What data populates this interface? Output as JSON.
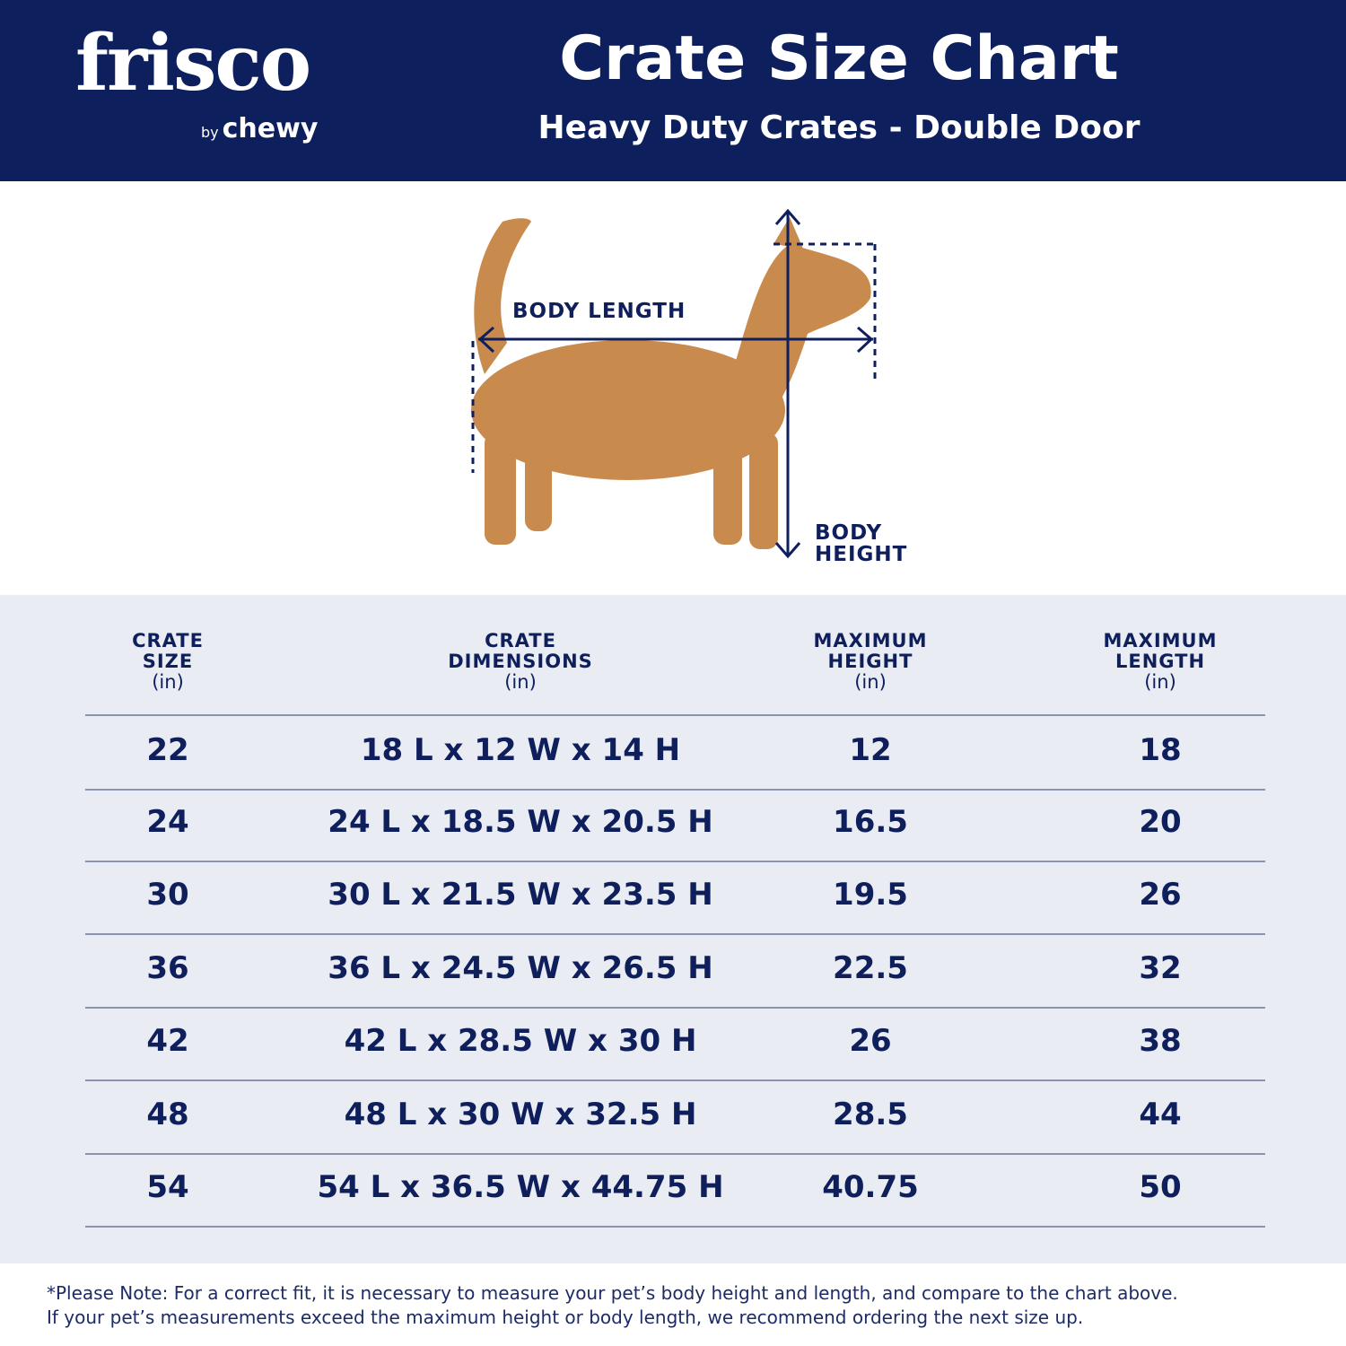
{
  "brand": {
    "logo_text": "frisco",
    "logo_by": "by",
    "logo_sub": "chewy"
  },
  "header": {
    "title": "Crate Size Chart",
    "subtitle": "Heavy Duty Crates - Double Door"
  },
  "diagram": {
    "body_length_label": "BODY LENGTH",
    "body_height_label_1": "BODY",
    "body_height_label_2": "HEIGHT"
  },
  "colors": {
    "navy": "#0e1f5e",
    "table_bg": "#e9ecf2",
    "dog": "#c98a4e"
  },
  "table": {
    "headers": [
      {
        "line1": "CRATE",
        "line2": "SIZE",
        "unit": "(in)"
      },
      {
        "line1": "CRATE",
        "line2": "DIMENSIONS",
        "unit": "(in)"
      },
      {
        "line1": "MAXIMUM",
        "line2": "HEIGHT",
        "unit": "(in)"
      },
      {
        "line1": "MAXIMUM",
        "line2": "LENGTH",
        "unit": "(in)"
      }
    ],
    "rows": [
      [
        "22",
        "18 L x 12 W x 14 H",
        "12",
        "18"
      ],
      [
        "24",
        "24 L x 18.5 W x 20.5 H",
        "16.5",
        "20"
      ],
      [
        "30",
        "30 L x 21.5 W x 23.5 H",
        "19.5",
        "26"
      ],
      [
        "36",
        "36 L x 24.5 W x 26.5 H",
        "22.5",
        "32"
      ],
      [
        "42",
        "42 L x 28.5 W x 30 H",
        "26",
        "38"
      ],
      [
        "48",
        "48 L x 30 W x 32.5 H",
        "28.5",
        "44"
      ],
      [
        "54",
        "54 L x 36.5 W x 44.75 H",
        "40.75",
        "50"
      ]
    ]
  },
  "footer": {
    "line1": "*Please Note: For a correct fit, it is necessary to measure your pet’s body height and length, and compare to the chart above.",
    "line2": "If your pet’s measurements exceed the maximum height or body length, we recommend ordering the next size up."
  }
}
